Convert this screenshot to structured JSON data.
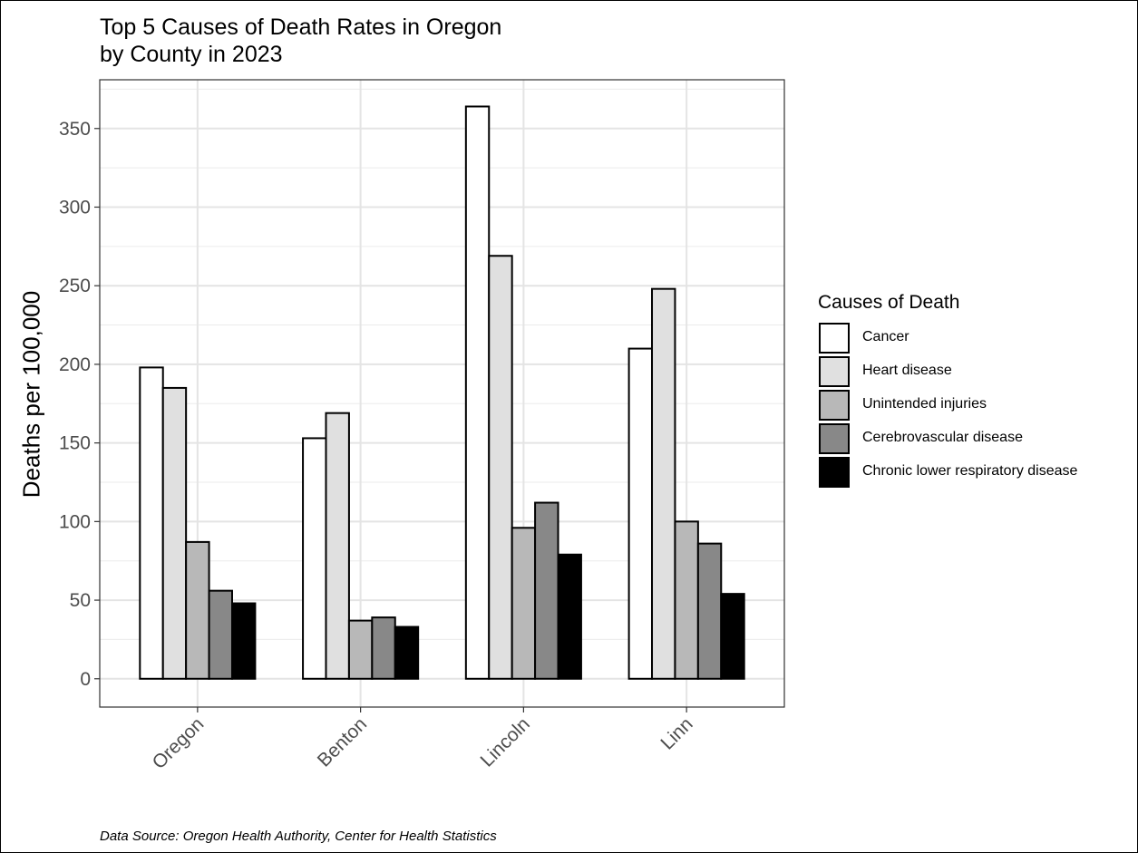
{
  "chart_data": {
    "type": "bar",
    "title_lines": [
      "Top 5 Causes of Death Rates in Oregon",
      "by County in 2023"
    ],
    "xlabel": "",
    "ylabel": "Deaths per 100,000",
    "categories": [
      "Oregon",
      "Benton",
      "Lincoln",
      "Linn"
    ],
    "series": [
      {
        "name": "Cancer",
        "color": "#ffffff",
        "values": [
          198,
          153,
          364,
          210
        ]
      },
      {
        "name": "Heart disease",
        "color": "#e0e0e0",
        "values": [
          185,
          169,
          269,
          248
        ]
      },
      {
        "name": "Unintended injuries",
        "color": "#b8b8b8",
        "values": [
          87,
          37,
          96,
          100
        ]
      },
      {
        "name": "Cerebrovascular disease",
        "color": "#888888",
        "values": [
          56,
          39,
          112,
          86
        ]
      },
      {
        "name": "Chronic lower respiratory disease",
        "color": "#000000",
        "values": [
          48,
          33,
          79,
          54
        ]
      }
    ],
    "ylim": [
      -18,
      381
    ],
    "y_ticks": [
      0,
      50,
      100,
      150,
      200,
      250,
      300,
      350
    ],
    "y_tick_labels": [
      "0",
      "50",
      "100",
      "150",
      "200",
      "250",
      "300",
      "350"
    ],
    "legend_title": "Causes of Death",
    "legend_position": "right",
    "grid": true,
    "caption": "Data Source: Oregon Health Authority, Center for Health Statistics"
  }
}
